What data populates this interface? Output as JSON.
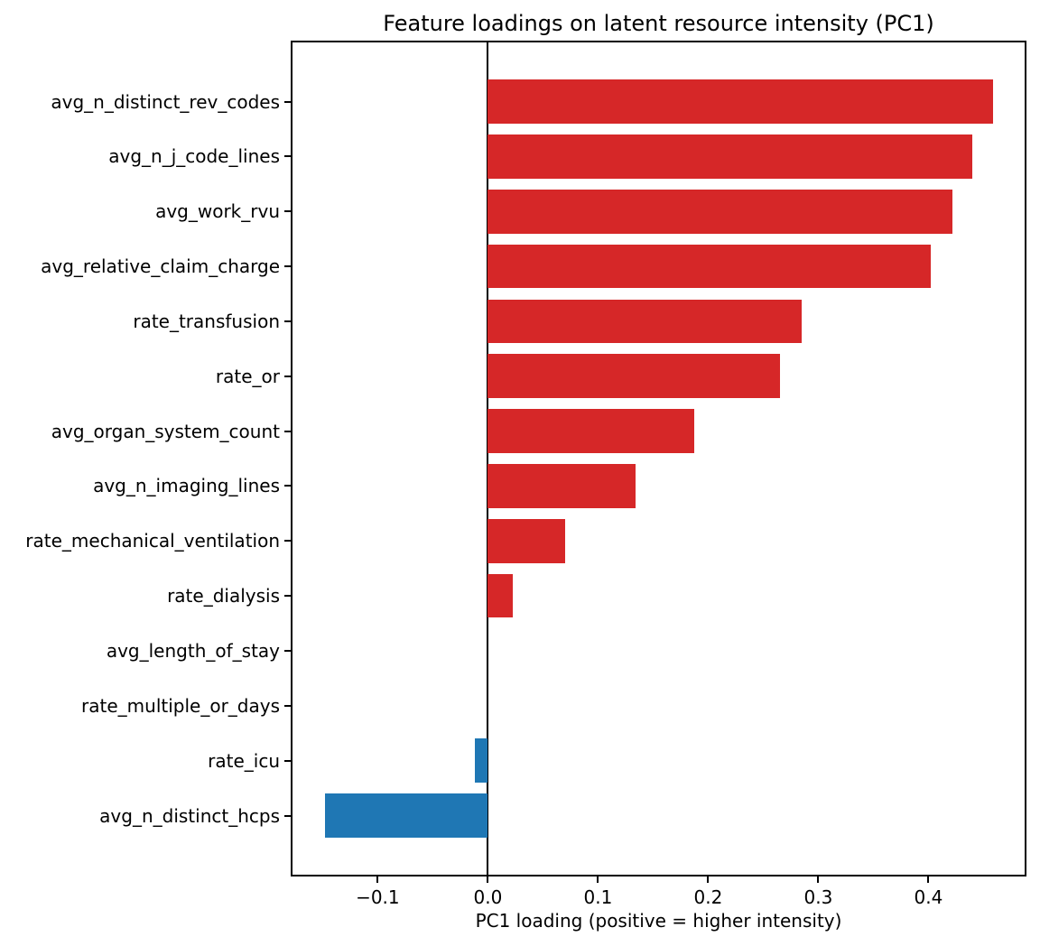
{
  "figure": {
    "background": "#ffffff"
  },
  "chart_data": {
    "type": "bar",
    "orientation": "horizontal",
    "title": "Feature loadings on latent resource intensity (PC1)",
    "xlabel": "PC1 loading (positive = higher intensity)",
    "ylabel": "",
    "categories": [
      "avg_n_distinct_rev_codes",
      "avg_n_j_code_lines",
      "avg_work_rvu",
      "avg_relative_claim_charge",
      "rate_transfusion",
      "rate_or",
      "avg_organ_system_count",
      "avg_n_imaging_lines",
      "rate_mechanical_ventilation",
      "rate_dialysis",
      "avg_length_of_stay",
      "rate_multiple_or_days",
      "rate_icu",
      "avg_n_distinct_hcps"
    ],
    "values": [
      0.459,
      0.44,
      0.422,
      0.402,
      0.285,
      0.265,
      0.187,
      0.134,
      0.07,
      0.023,
      0.0,
      0.0,
      -0.012,
      -0.148
    ],
    "positive_color": "#d62728",
    "negative_color": "#1f77b4",
    "axis_color": "#000000",
    "xlim": [
      -0.179,
      0.489
    ],
    "xtick_values": [
      -0.1,
      0.0,
      0.1,
      0.2,
      0.3,
      0.4
    ],
    "xtick_labels": [
      "−0.1",
      "0.0",
      "0.1",
      "0.2",
      "0.3",
      "0.4"
    ],
    "zero_line": true,
    "grid": false,
    "legend": "none"
  }
}
